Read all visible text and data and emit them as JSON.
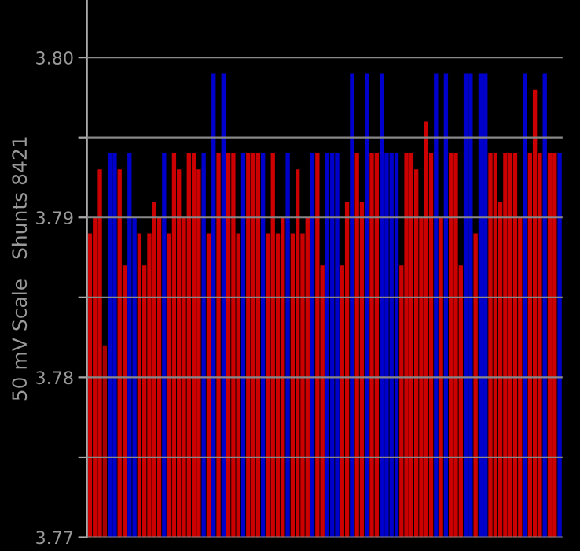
{
  "chart_data": {
    "type": "bar",
    "ylabel": "50 mV Scale   Shunts 8421",
    "categories": [
      null,
      null,
      null,
      null,
      null,
      null,
      null,
      null,
      null,
      null,
      null,
      null,
      null,
      null,
      null,
      null,
      null,
      null,
      null,
      null,
      null,
      null,
      null,
      null,
      null,
      null,
      null,
      null,
      null,
      null,
      null,
      null,
      null,
      null,
      null,
      null,
      null,
      null,
      null,
      null,
      null,
      null,
      null,
      null,
      null,
      null,
      null,
      null,
      null,
      null,
      null,
      null,
      null,
      null,
      null,
      null,
      null,
      null,
      null,
      null,
      null,
      null,
      null,
      null,
      null,
      null,
      null,
      null,
      null,
      null,
      null,
      null,
      null,
      null,
      null,
      null,
      null,
      null,
      null,
      null,
      null,
      null,
      null,
      null,
      null,
      null,
      null,
      null,
      null,
      null,
      null,
      null,
      null,
      null,
      null,
      null
    ],
    "values": [
      3.789,
      3.79,
      3.793,
      3.782,
      3.794,
      3.794,
      3.793,
      3.787,
      3.794,
      3.79,
      3.789,
      3.787,
      3.789,
      3.791,
      3.79,
      3.794,
      3.789,
      3.794,
      3.793,
      3.79,
      3.794,
      3.794,
      3.793,
      3.794,
      3.789,
      3.799,
      3.794,
      3.799,
      3.794,
      3.794,
      3.789,
      3.794,
      3.794,
      3.794,
      3.794,
      3.794,
      3.789,
      3.794,
      3.789,
      3.79,
      3.794,
      3.789,
      3.793,
      3.789,
      3.79,
      3.794,
      3.794,
      3.787,
      3.794,
      3.794,
      3.794,
      3.787,
      3.791,
      3.799,
      3.794,
      3.791,
      3.799,
      3.794,
      3.794,
      3.799,
      3.794,
      3.794,
      3.794,
      3.787,
      3.794,
      3.794,
      3.793,
      3.79,
      3.796,
      3.794,
      3.799,
      3.79,
      3.799,
      3.794,
      3.794,
      3.787,
      3.799,
      3.799,
      3.789,
      3.799,
      3.799,
      3.794,
      3.794,
      3.791,
      3.794,
      3.794,
      3.794,
      3.79,
      3.799,
      3.794,
      3.798,
      3.794,
      3.799,
      3.794,
      3.794,
      3.794
    ],
    "colors": [
      "#cc0000",
      "#cc0000",
      "#cc0000",
      "#aa0000",
      "#0000cc",
      "#0000cc",
      "#cc0000",
      "#cc0000",
      "#0000cc",
      "#0000cc",
      "#cc0000",
      "#cc0000",
      "#cc0000",
      "#cc0000",
      "#cc0000",
      "#0000cc",
      "#cc0000",
      "#cc0000",
      "#cc0000",
      "#cc0000",
      "#cc0000",
      "#cc0000",
      "#cc0000",
      "#0000cc",
      "#cc0000",
      "#0000cc",
      "#cc0000",
      "#0000cc",
      "#cc0000",
      "#cc0000",
      "#cc0000",
      "#0000cc",
      "#cc0000",
      "#cc0000",
      "#cc0000",
      "#0000cc",
      "#cc0000",
      "#cc0000",
      "#cc0000",
      "#cc0000",
      "#0000cc",
      "#cc0000",
      "#cc0000",
      "#cc0000",
      "#cc0000",
      "#0000cc",
      "#cc0000",
      "#cc0000",
      "#0000cc",
      "#0000cc",
      "#0000cc",
      "#cc0000",
      "#cc0000",
      "#0000cc",
      "#cc0000",
      "#cc0000",
      "#0000cc",
      "#cc0000",
      "#cc0000",
      "#0000cc",
      "#0000cc",
      "#0000cc",
      "#0000cc",
      "#cc0000",
      "#cc0000",
      "#cc0000",
      "#cc0000",
      "#cc0000",
      "#cc0000",
      "#cc0000",
      "#0000cc",
      "#cc0000",
      "#0000cc",
      "#cc0000",
      "#cc0000",
      "#cc0000",
      "#0000cc",
      "#0000cc",
      "#cc0000",
      "#0000cc",
      "#0000cc",
      "#cc0000",
      "#cc0000",
      "#cc0000",
      "#cc0000",
      "#cc0000",
      "#cc0000",
      "#cc0000",
      "#0000cc",
      "#cc0000",
      "#cc0000",
      "#cc0000",
      "#0000cc",
      "#cc0000",
      "#cc0000",
      "#0000cc"
    ],
    "ylim": [
      3.77,
      3.8036
    ],
    "yticks": [
      {
        "value": 3.77,
        "label": "3.77"
      },
      {
        "value": 3.775,
        "label": null
      },
      {
        "value": 3.78,
        "label": "3.78"
      },
      {
        "value": 3.785,
        "label": null
      },
      {
        "value": 3.79,
        "label": "3.79"
      },
      {
        "value": 3.795,
        "label": null
      },
      {
        "value": 3.8,
        "label": "3.80"
      }
    ],
    "grid": "y",
    "tick_labels": "y"
  }
}
